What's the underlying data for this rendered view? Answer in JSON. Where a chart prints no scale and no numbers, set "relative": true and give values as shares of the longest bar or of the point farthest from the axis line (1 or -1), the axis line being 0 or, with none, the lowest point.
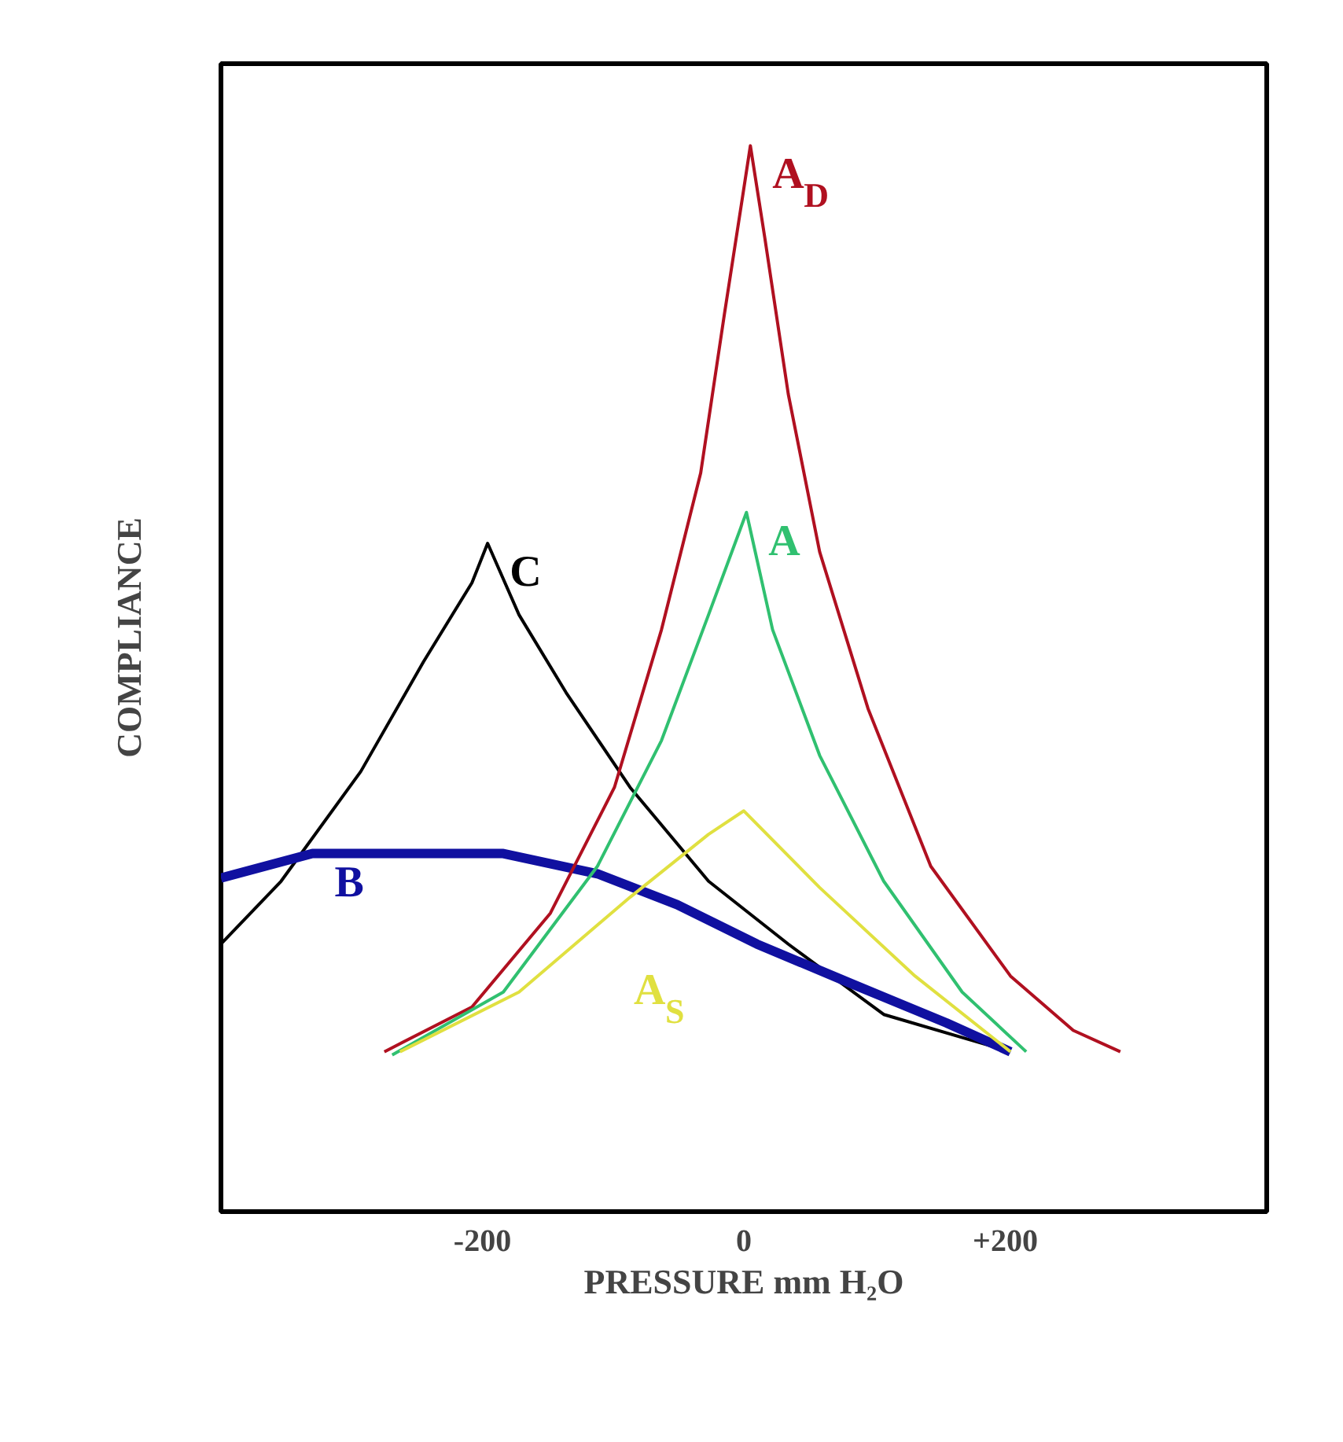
{
  "chart_data": {
    "type": "line",
    "relative": true,
    "xlabel": "PRESSURE mm H₂O",
    "ylabel": "COMPLIANCE",
    "xlim": [
      -400,
      400
    ],
    "xticks": [
      -200,
      0,
      {
        "value": 200,
        "label": "+200"
      }
    ],
    "tick_labels": "x",
    "grid": false,
    "marker": "none",
    "series": [
      {
        "name": "C",
        "color": "#000000",
        "x": [
          -400,
          -354,
          -293,
          -245,
          -208,
          -196,
          -172,
          -136,
          -87,
          -27,
          34,
          107,
          204
        ],
        "values": [
          0.251,
          0.31,
          0.413,
          0.516,
          0.59,
          0.627,
          0.56,
          0.487,
          0.398,
          0.31,
          0.251,
          0.185,
          0.15
        ]
      },
      {
        "name": "B",
        "color": "#1010a0",
        "x": [
          -400,
          -330,
          -184,
          -112,
          -51,
          10,
          82,
          155,
          204
        ],
        "values": [
          0.313,
          0.336,
          0.336,
          0.317,
          0.288,
          0.251,
          0.214,
          0.177,
          0.15
        ]
      },
      {
        "name": "A$_{D}$",
        "color": "#b01020",
        "x": [
          -275,
          -208,
          -148,
          -99,
          -63,
          -33,
          -15,
          -2,
          5,
          16,
          34,
          58,
          95,
          143,
          204,
          252,
          288
        ],
        "values": [
          0.15,
          0.192,
          0.28,
          0.398,
          0.546,
          0.693,
          0.841,
          0.944,
          1,
          0.914,
          0.767,
          0.619,
          0.472,
          0.324,
          0.221,
          0.17,
          0.15
        ]
      },
      {
        "name": "A",
        "color": "#30c070",
        "x": [
          -269,
          -184,
          -112,
          -63,
          -27,
          2,
          22,
          58,
          107,
          167,
          216
        ],
        "values": [
          0.147,
          0.206,
          0.324,
          0.442,
          0.56,
          0.656,
          0.546,
          0.428,
          0.31,
          0.206,
          0.15
        ]
      },
      {
        "name": "A$_{S}$",
        "color": "#e0e040",
        "x": [
          -263,
          -172,
          -87,
          -27,
          0,
          58,
          131,
          204
        ],
        "values": [
          0.15,
          0.206,
          0.295,
          0.354,
          0.376,
          0.304,
          0.221,
          0.15
        ]
      }
    ]
  }
}
